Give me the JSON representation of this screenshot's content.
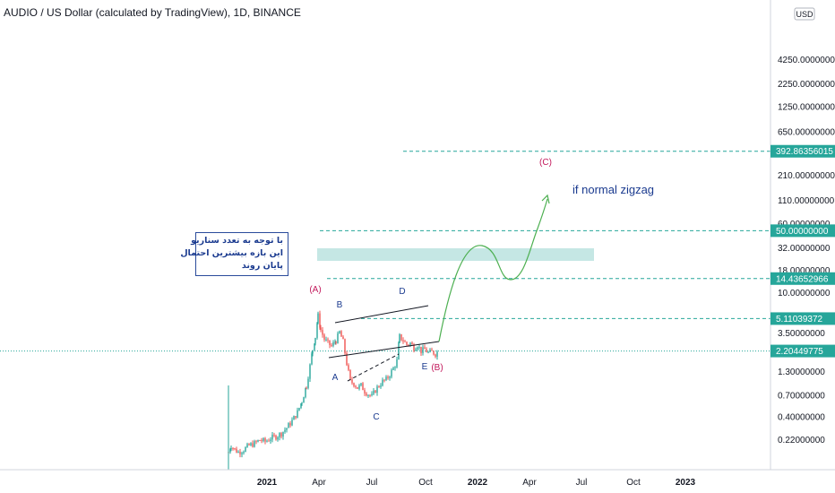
{
  "header": {
    "title": "AUDIO / US Dollar (calculated by TradingView), 1D, BINANCE"
  },
  "chart_data": {
    "type": "candlestick",
    "y_scale": "log",
    "currency_badge": "USD",
    "y_ticks": [
      {
        "value": 4250,
        "label": "4250.00000000"
      },
      {
        "value": 2250,
        "label": "2250.00000000"
      },
      {
        "value": 1250,
        "label": "1250.00000000"
      },
      {
        "value": 650,
        "label": "650.00000000"
      },
      {
        "value": 210,
        "label": "210.00000000"
      },
      {
        "value": 110,
        "label": "110.00000000"
      },
      {
        "value": 60,
        "label": "60.00000000"
      },
      {
        "value": 32,
        "label": "32.00000000"
      },
      {
        "value": 18,
        "label": "18.00000000"
      },
      {
        "value": 10,
        "label": "10.00000000"
      },
      {
        "value": 3.5,
        "label": "3.50000000"
      },
      {
        "value": 1.3,
        "label": "1.30000000"
      },
      {
        "value": 0.7,
        "label": "0.70000000"
      },
      {
        "value": 0.4,
        "label": "0.40000000"
      },
      {
        "value": 0.22,
        "label": "0.22000000"
      }
    ],
    "x_ticks": [
      "2021",
      "Apr",
      "Jul",
      "Oct",
      "2022",
      "Apr",
      "Jul",
      "Oct",
      "2023"
    ],
    "price_labels": [
      {
        "value": 392.86356015,
        "label": "392.86356015",
        "color": "#26a69a"
      },
      {
        "value": 50,
        "label": "50.00000000",
        "color": "#26a69a"
      },
      {
        "value": 14.43652966,
        "label": "14.43652966",
        "color": "#26a69a"
      },
      {
        "value": 5.11039372,
        "label": "5.11039372",
        "color": "#26a69a"
      },
      {
        "value": 2.20449775,
        "label": "2.20449775",
        "color": "#26a69a"
      }
    ],
    "wave_labels": [
      {
        "text": "(A)",
        "color": "#c2185b"
      },
      {
        "text": "B",
        "color": "#1a3a8f"
      },
      {
        "text": "A",
        "color": "#1a3a8f"
      },
      {
        "text": "C",
        "color": "#1a3a8f"
      },
      {
        "text": "D",
        "color": "#1a3a8f"
      },
      {
        "text": "E",
        "color": "#1a3a8f"
      },
      {
        "text": "(B)",
        "color": "#c2185b"
      },
      {
        "text": "(C)",
        "color": "#c2185b"
      }
    ],
    "annotation": "if normal zigzag",
    "note_lines": [
      "با توجه به تعدد سناریو",
      "این بازه بیشترین احتمال",
      "پایان روند"
    ],
    "colors": {
      "up": "#26a69a",
      "down": "#ef5350",
      "projection": "#4caf50",
      "zone": "#b2dfdb",
      "text_blue": "#1a3a8f"
    }
  }
}
